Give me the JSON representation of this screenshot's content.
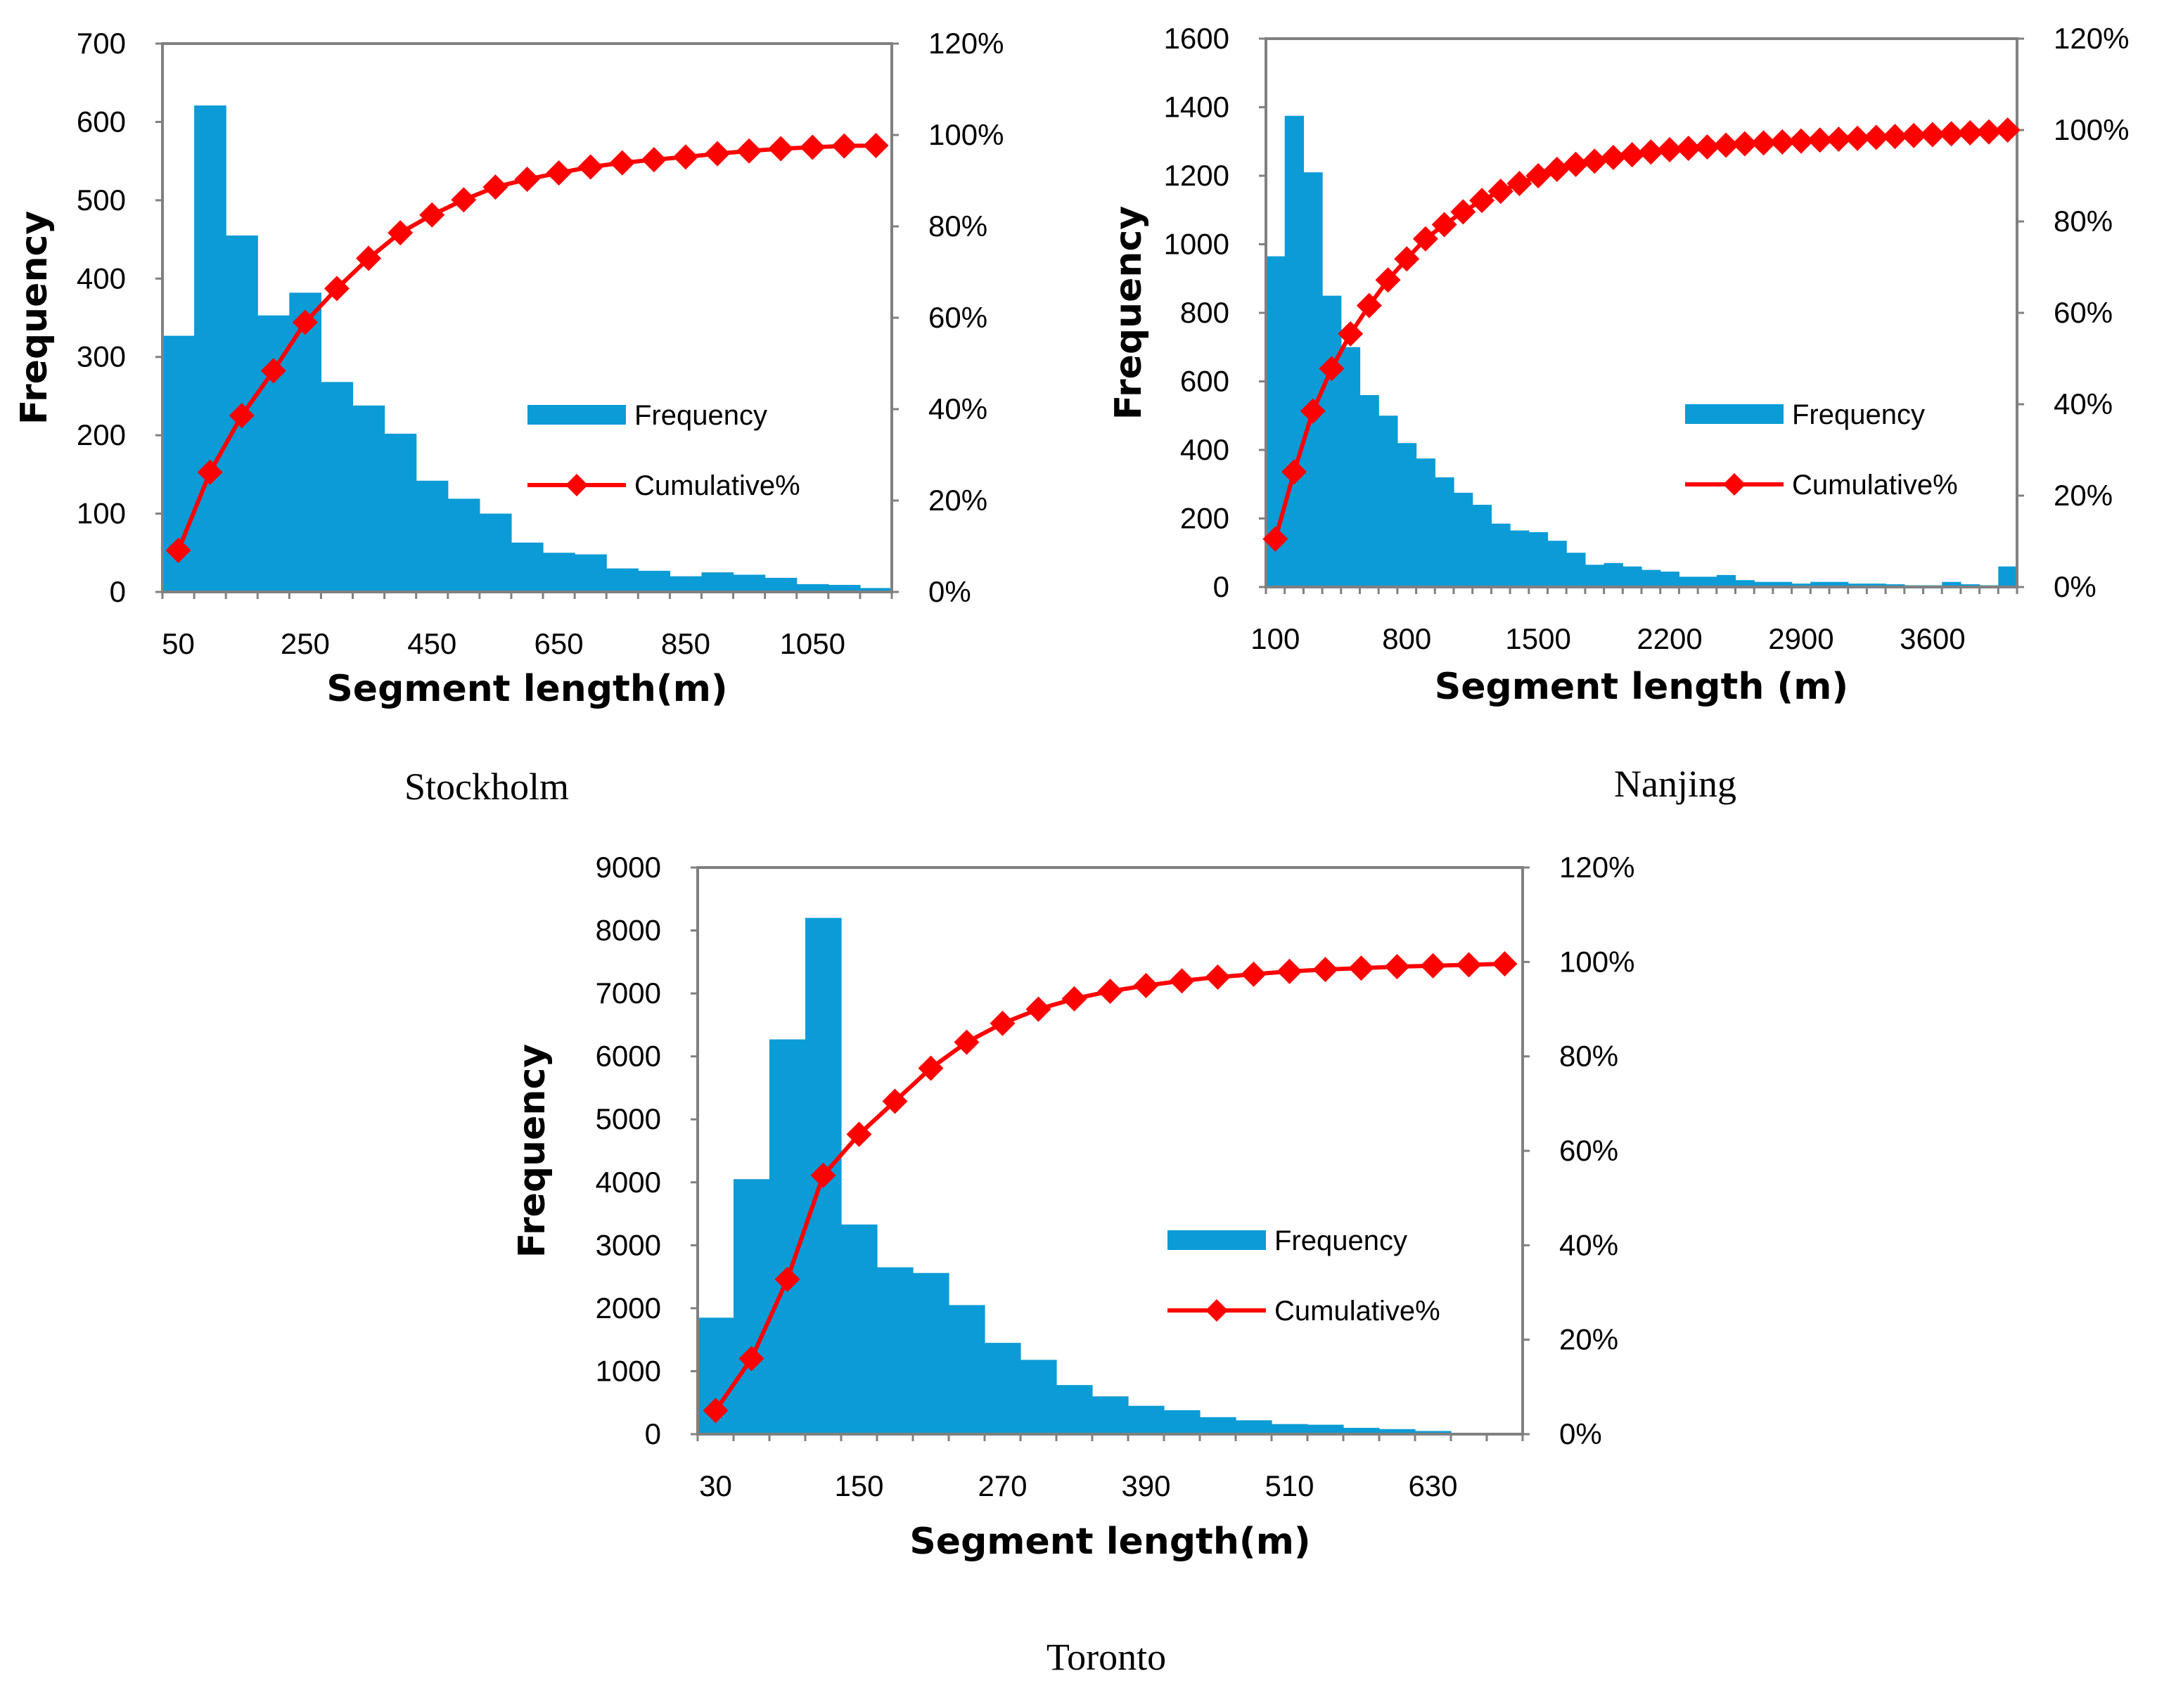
{
  "colors": {
    "bar": "#0b9bd6",
    "line": "#ff0000",
    "frame": "#808080"
  },
  "chart_data": [
    {
      "type": "bar",
      "caption": "Stockholm",
      "xlabel": "Segment length(m)",
      "ylabel": "Frequency",
      "ylim": [
        0,
        700
      ],
      "ylim_right": [
        0,
        120
      ],
      "yticks": [
        "0",
        "100",
        "200",
        "300",
        "400",
        "500",
        "600",
        "700"
      ],
      "yticks_right": [
        "0%",
        "20%",
        "40%",
        "60%",
        "80%",
        "100%",
        "120%"
      ],
      "xticks": [
        "50",
        "250",
        "450",
        "650",
        "850",
        "1050"
      ],
      "bin_start": 25,
      "bin_width": 50,
      "categories": [
        50,
        100,
        150,
        200,
        250,
        300,
        350,
        400,
        450,
        500,
        550,
        600,
        650,
        700,
        750,
        800,
        850,
        900,
        950,
        1000,
        1050,
        1100,
        1150
      ],
      "series": [
        {
          "name": "Frequency",
          "type": "bar",
          "values": [
            327,
            621,
            455,
            353,
            382,
            268,
            238,
            202,
            142,
            119,
            100,
            63,
            50,
            48,
            30,
            27,
            20,
            25,
            22,
            18,
            10,
            9,
            5
          ]
        },
        {
          "name": "Cumulative%",
          "type": "line",
          "axis": "right",
          "values": [
            9.1,
            26.2,
            38.6,
            48.4,
            59.0,
            66.4,
            73.0,
            78.6,
            82.5,
            85.8,
            88.6,
            90.3,
            91.7,
            93.0,
            93.9,
            94.6,
            95.2,
            95.9,
            96.5,
            97.0,
            97.3,
            97.6,
            97.7
          ]
        }
      ],
      "legend": [
        "Frequency",
        "Cumulative%"
      ]
    },
    {
      "type": "bar",
      "caption": "Nanjing",
      "xlabel": "Segment length (m)",
      "ylabel": "Frequency",
      "ylim": [
        0,
        1600
      ],
      "ylim_right": [
        0,
        120
      ],
      "yticks": [
        "0",
        "200",
        "400",
        "600",
        "800",
        "1000",
        "1200",
        "1400",
        "1600"
      ],
      "yticks_right": [
        "0%",
        "20%",
        "40%",
        "60%",
        "80%",
        "100%",
        "120%"
      ],
      "xticks": [
        "100",
        "800",
        "1500",
        "2200",
        "2900",
        "3600"
      ],
      "bin_start": 50,
      "bin_width": 100,
      "categories": [
        100,
        200,
        300,
        400,
        500,
        600,
        700,
        800,
        900,
        1000,
        1100,
        1200,
        1300,
        1400,
        1500,
        1600,
        1700,
        1800,
        1900,
        2000,
        2100,
        2200,
        2300,
        2400,
        2500,
        2600,
        2700,
        2800,
        2900,
        3000,
        3100,
        3200,
        3300,
        3400,
        3500,
        3600,
        3700,
        3800,
        3900,
        4000
      ],
      "series": [
        {
          "name": "Frequency",
          "type": "bar",
          "values": [
            965,
            1375,
            1210,
            850,
            700,
            560,
            500,
            420,
            375,
            320,
            275,
            240,
            185,
            165,
            160,
            135,
            100,
            65,
            70,
            60,
            50,
            45,
            30,
            30,
            35,
            20,
            15,
            15,
            10,
            15,
            15,
            10,
            10,
            8,
            5,
            5,
            15,
            8,
            5,
            60
          ]
        },
        {
          "name": "Cumulative%",
          "type": "line",
          "axis": "right",
          "values": [
            10.5,
            25.2,
            38.5,
            47.8,
            55.4,
            61.6,
            67.2,
            71.8,
            76.2,
            79.3,
            82.1,
            84.6,
            86.6,
            88.3,
            90.0,
            91.4,
            92.5,
            93.2,
            94.0,
            94.6,
            95.2,
            95.7,
            96.0,
            96.3,
            96.7,
            97.0,
            97.2,
            97.4,
            97.6,
            97.8,
            98.0,
            98.2,
            98.4,
            98.6,
            98.8,
            99.0,
            99.2,
            99.4,
            99.6,
            100.0
          ]
        }
      ],
      "legend": [
        "Frequency",
        "Cumulative%"
      ]
    },
    {
      "type": "bar",
      "caption": "Toronto",
      "xlabel": "Segment length(m)",
      "ylabel": "Frequency",
      "ylim": [
        0,
        9000
      ],
      "ylim_right": [
        0,
        120
      ],
      "yticks": [
        "0",
        "1000",
        "2000",
        "3000",
        "4000",
        "5000",
        "6000",
        "7000",
        "8000",
        "9000"
      ],
      "yticks_right": [
        "0%",
        "20%",
        "40%",
        "60%",
        "80%",
        "100%",
        "120%"
      ],
      "xticks": [
        "30",
        "150",
        "270",
        "390",
        "510",
        "630"
      ],
      "bin_start": 15,
      "bin_width": 30,
      "categories": [
        30,
        60,
        90,
        120,
        150,
        180,
        210,
        240,
        270,
        300,
        330,
        360,
        390,
        420,
        450,
        480,
        510,
        540,
        570,
        600,
        630,
        660,
        690
      ],
      "series": [
        {
          "name": "Frequency",
          "type": "bar",
          "values": [
            1850,
            4050,
            6270,
            8200,
            3330,
            2650,
            2560,
            2050,
            1450,
            1180,
            780,
            600,
            450,
            380,
            270,
            220,
            160,
            150,
            100,
            80,
            50,
            20,
            10
          ]
        },
        {
          "name": "Cumulative%",
          "type": "line",
          "axis": "right",
          "values": [
            5.0,
            16.0,
            32.8,
            54.8,
            63.5,
            70.5,
            77.5,
            83.0,
            87.0,
            90.0,
            92.2,
            93.8,
            95.0,
            96.0,
            96.8,
            97.4,
            98.0,
            98.4,
            98.7,
            99.0,
            99.2,
            99.4,
            99.6
          ]
        }
      ],
      "legend": [
        "Frequency",
        "Cumulative%"
      ]
    }
  ]
}
